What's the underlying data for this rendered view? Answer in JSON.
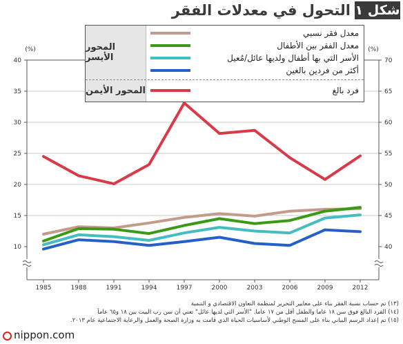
{
  "header": {
    "figure_label": "شكل ١",
    "title": "التحول في معدلات الفقر"
  },
  "legend": {
    "left_axis_label": "المحور الأيسر",
    "right_axis_label": "المحور الأيمن",
    "items": [
      {
        "label": "معدل فقر نسبي",
        "color": "#c49a8a",
        "axis": "left"
      },
      {
        "label": "معدل الفقر بين الأطفال",
        "color": "#3a9a14",
        "axis": "left"
      },
      {
        "label": "الأسر التي بها أطفال ولديها عائل/مُعيل",
        "color": "#45bcc0",
        "axis": "left"
      },
      {
        "label": "أكثر من فردين بالغين",
        "color": "#2560c8",
        "axis": "left"
      },
      {
        "label": "فرد بالغ",
        "color": "#d93a48",
        "axis": "right"
      }
    ]
  },
  "chart_data": {
    "type": "line",
    "x": [
      1985,
      1988,
      1991,
      1994,
      1997,
      2000,
      2003,
      2006,
      2009,
      2012
    ],
    "left_axis": {
      "unit": "(%)",
      "ticks": [
        10,
        15,
        20,
        25,
        30,
        35,
        40
      ],
      "ylim": [
        10,
        40
      ],
      "axis_break": true
    },
    "right_axis": {
      "unit": "(%)",
      "ticks": [
        40,
        45,
        50,
        55,
        60,
        65,
        70
      ],
      "ylim": [
        40,
        70
      ],
      "axis_break": true
    },
    "series": [
      {
        "name": "معدل فقر نسبي",
        "axis": "left",
        "color": "#c49a8a",
        "values": [
          12.0,
          13.2,
          13.0,
          13.8,
          14.7,
          15.3,
          14.9,
          15.7,
          16.0,
          16.1
        ]
      },
      {
        "name": "معدل الفقر بين الأطفال",
        "axis": "left",
        "color": "#3a9a14",
        "values": [
          10.9,
          12.9,
          12.8,
          12.1,
          13.4,
          14.5,
          13.7,
          14.2,
          15.7,
          16.3
        ]
      },
      {
        "name": "الأسر التي بها أطفال ولديها عائل/مُعيل",
        "axis": "left",
        "color": "#45bcc0",
        "values": [
          10.3,
          11.9,
          11.6,
          11.0,
          12.2,
          13.1,
          12.5,
          12.2,
          14.6,
          15.1
        ]
      },
      {
        "name": "أكثر من فردين بالغين",
        "axis": "left",
        "color": "#2560c8",
        "values": [
          9.6,
          11.1,
          10.8,
          10.2,
          10.8,
          11.5,
          10.5,
          10.2,
          12.7,
          12.4
        ]
      },
      {
        "name": "فرد بالغ",
        "axis": "right",
        "color": "#d93a48",
        "values": [
          54.5,
          51.4,
          50.1,
          53.2,
          63.1,
          58.2,
          58.7,
          54.3,
          50.8,
          54.6
        ]
      }
    ]
  },
  "notes": [
    "(١٣) تم حساب نسبة الفقر بناء على معايير التحرير لمنظمة التعاون الاقتصادي و التنمية",
    "(١٤) الفرد البالغ فوق سن ١٨ عاما والطفل أقل من ١٧ عاما. \"الأسر التي لديها عائل\" تعني أن سن رب البيت بين ١٨ و٦٥ عاماً",
    "(١٥) تم إعداد الرسم البياني بناء على المسح الوطني لأساسيات الحياة الذي قامت به وزارة الصحة والعمل والرعاية الاجتماعية عام ٢٠١٣."
  ],
  "brand": {
    "name": "nippon",
    "suffix": ".com"
  }
}
